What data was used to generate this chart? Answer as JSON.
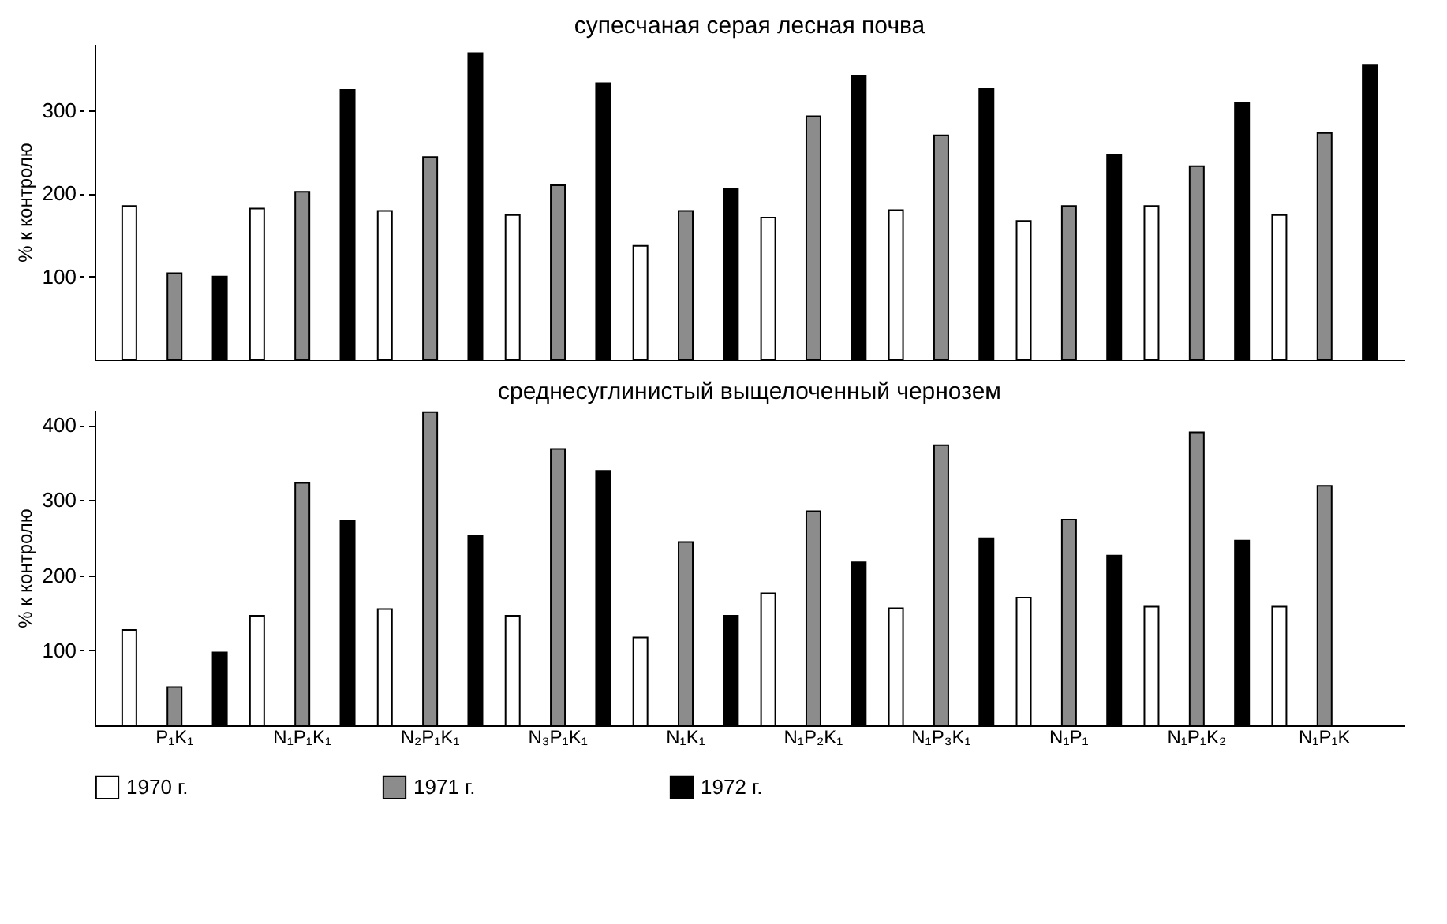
{
  "chart_data": [
    {
      "type": "bar",
      "title": "супесчаная серая лесная почва",
      "ylabel": "% к контролю",
      "categories": [
        null,
        null,
        null,
        null,
        null,
        null,
        null,
        null,
        null,
        null
      ],
      "series": [
        {
          "name": "1970 г.",
          "color": "#ffffff",
          "values": [
            185,
            182,
            179,
            174,
            137,
            171,
            180,
            167,
            185,
            174
          ]
        },
        {
          "name": "1971 г.",
          "color": "#8c8c8c",
          "values": [
            104,
            202,
            244,
            210,
            179,
            293,
            270,
            185,
            233,
            273
          ]
        },
        {
          "name": "1972 г.",
          "color": "#000000",
          "values": [
            100,
            325,
            369,
            333,
            206,
            342,
            326,
            247,
            309,
            355
          ]
        }
      ],
      "ylim": [
        0,
        380
      ],
      "yticks": [
        100,
        200,
        300
      ],
      "tick_labels": "y",
      "legend": "bottom"
    },
    {
      "type": "bar",
      "title": "среднесуглинистый выщелоченный чернозем",
      "ylabel": "% к контролю",
      "categories": [
        "P₁K₁",
        "N₁P₁K₁",
        "N₂P₁K₁",
        "N₃P₁K₁",
        "N₁K₁",
        "N₁P₂K₁",
        "N₁P₃K₁",
        "N₁P₁",
        "N₁P₁K₂",
        "N₁P₁K"
      ],
      "series": [
        {
          "name": "1970 г.",
          "color": "#ffffff",
          "values": [
            127,
            146,
            155,
            146,
            117,
            176,
            156,
            170,
            158,
            158
          ]
        },
        {
          "name": "1971 г.",
          "color": "#8c8c8c",
          "values": [
            51,
            323,
            417,
            368,
            244,
            285,
            373,
            274,
            390,
            319
          ]
        },
        {
          "name": "1972 г.",
          "color": "#000000",
          "values": [
            97,
            273,
            252,
            339,
            146,
            217,
            249,
            226,
            246,
            null
          ]
        }
      ],
      "ylim": [
        0,
        420
      ],
      "yticks": [
        100,
        200,
        300,
        400
      ],
      "legend": "bottom"
    }
  ]
}
